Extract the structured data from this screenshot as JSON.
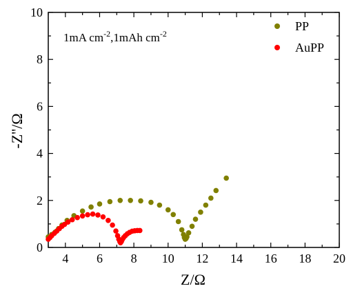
{
  "chart_data": {
    "type": "scatter",
    "title": "",
    "xlabel": "Z/Ω",
    "ylabel": "-Z''/Ω",
    "xlim": [
      3,
      20
    ],
    "ylim": [
      0,
      10
    ],
    "x_ticks": [
      4,
      6,
      8,
      10,
      12,
      14,
      16,
      18,
      20
    ],
    "y_ticks": [
      0,
      2,
      4,
      6,
      8,
      10
    ],
    "grid": false,
    "legend_position": "top-right",
    "annotation": {
      "main": "1mA cm",
      "sup1": "-2",
      "mid": ",1mAh cm",
      "sup2": "-2"
    },
    "series": [
      {
        "name": "PP",
        "color": "#808000",
        "points": [
          [
            3.0,
            0.45
          ],
          [
            3.2,
            0.55
          ],
          [
            3.4,
            0.65
          ],
          [
            3.6,
            0.8
          ],
          [
            3.8,
            0.95
          ],
          [
            4.1,
            1.15
          ],
          [
            4.5,
            1.35
          ],
          [
            5.0,
            1.55
          ],
          [
            5.5,
            1.72
          ],
          [
            6.0,
            1.85
          ],
          [
            6.6,
            1.95
          ],
          [
            7.2,
            2.0
          ],
          [
            7.8,
            2.0
          ],
          [
            8.4,
            1.98
          ],
          [
            9.0,
            1.92
          ],
          [
            9.5,
            1.8
          ],
          [
            10.0,
            1.6
          ],
          [
            10.3,
            1.4
          ],
          [
            10.6,
            1.1
          ],
          [
            10.8,
            0.75
          ],
          [
            10.9,
            0.55
          ],
          [
            10.95,
            0.42
          ],
          [
            11.0,
            0.35
          ],
          [
            11.05,
            0.38
          ],
          [
            11.1,
            0.45
          ],
          [
            11.2,
            0.62
          ],
          [
            11.4,
            0.9
          ],
          [
            11.6,
            1.2
          ],
          [
            11.9,
            1.5
          ],
          [
            12.2,
            1.8
          ],
          [
            12.5,
            2.1
          ],
          [
            12.8,
            2.42
          ],
          [
            13.4,
            2.95
          ]
        ]
      },
      {
        "name": "AuPP",
        "color": "#ff0000",
        "points": [
          [
            3.0,
            0.35
          ],
          [
            3.1,
            0.42
          ],
          [
            3.2,
            0.5
          ],
          [
            3.35,
            0.6
          ],
          [
            3.5,
            0.7
          ],
          [
            3.65,
            0.8
          ],
          [
            3.8,
            0.9
          ],
          [
            3.95,
            0.98
          ],
          [
            4.15,
            1.08
          ],
          [
            4.4,
            1.18
          ],
          [
            4.7,
            1.27
          ],
          [
            5.0,
            1.34
          ],
          [
            5.3,
            1.39
          ],
          [
            5.6,
            1.42
          ],
          [
            5.9,
            1.38
          ],
          [
            6.2,
            1.3
          ],
          [
            6.5,
            1.15
          ],
          [
            6.75,
            0.95
          ],
          [
            6.95,
            0.7
          ],
          [
            7.05,
            0.5
          ],
          [
            7.12,
            0.35
          ],
          [
            7.18,
            0.25
          ],
          [
            7.22,
            0.2
          ],
          [
            7.27,
            0.25
          ],
          [
            7.32,
            0.33
          ],
          [
            7.4,
            0.42
          ],
          [
            7.5,
            0.5
          ],
          [
            7.62,
            0.58
          ],
          [
            7.75,
            0.64
          ],
          [
            7.9,
            0.69
          ],
          [
            8.05,
            0.71
          ],
          [
            8.2,
            0.72
          ],
          [
            8.35,
            0.72
          ]
        ]
      }
    ]
  }
}
